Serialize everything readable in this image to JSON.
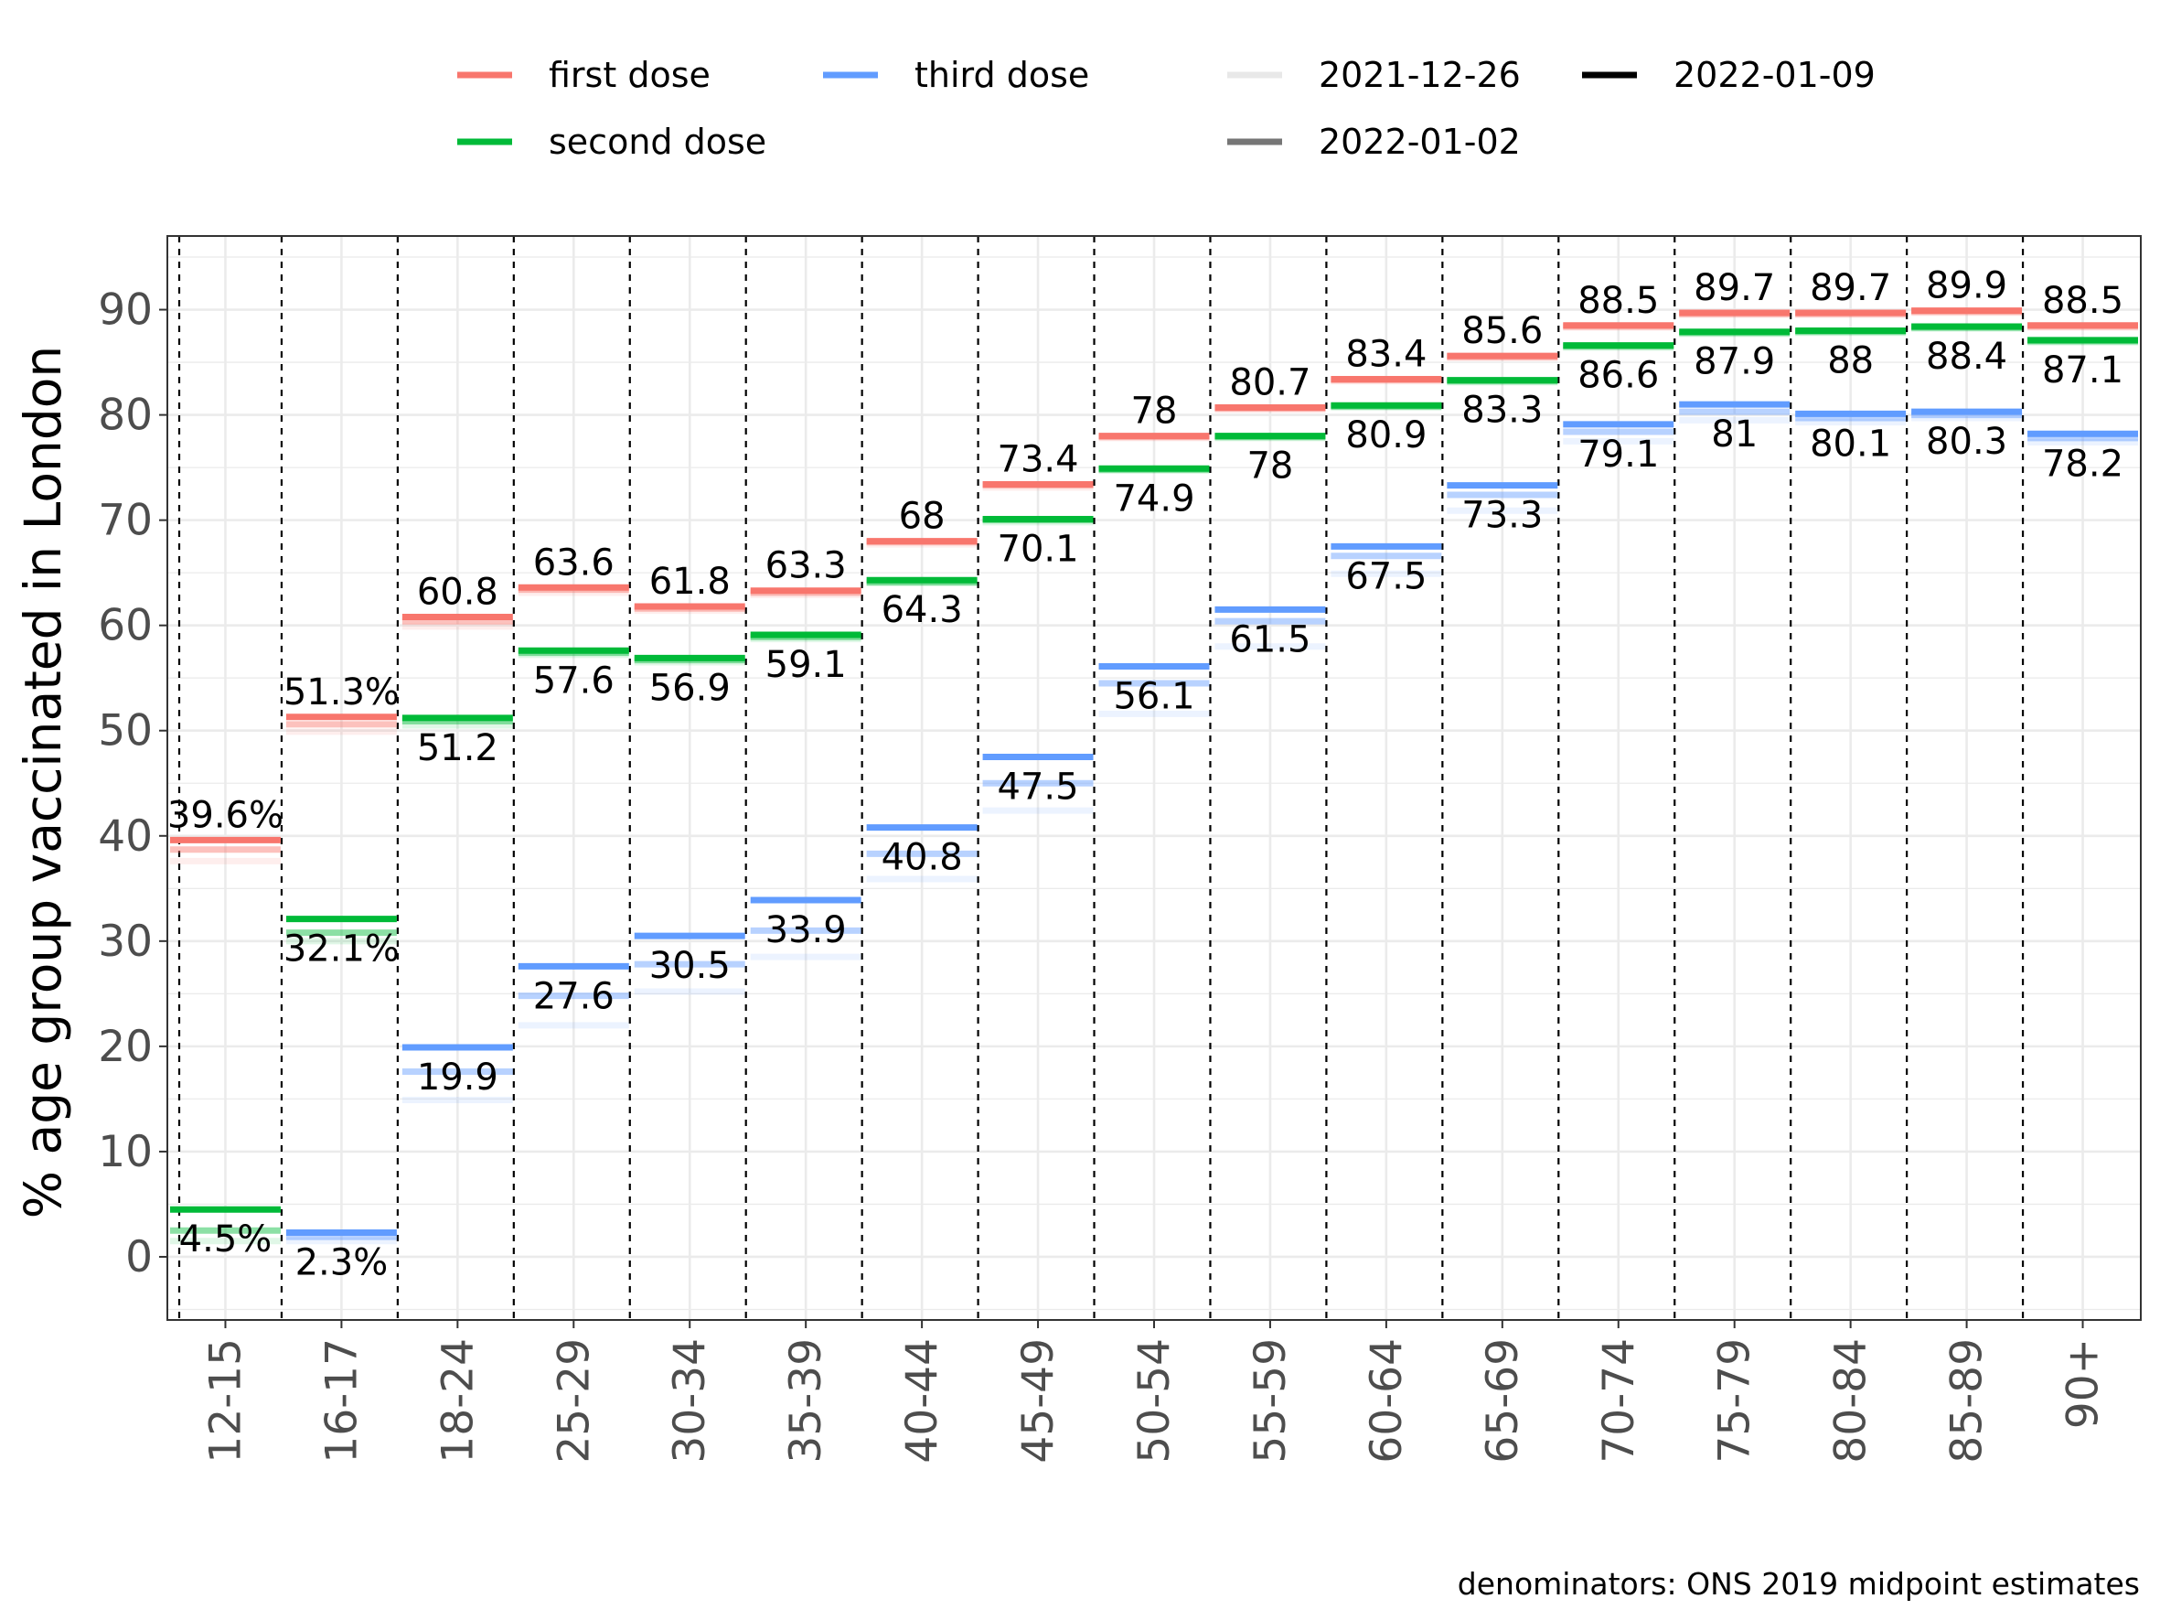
{
  "chart_data": {
    "type": "line",
    "ylabel": "% age group vaccinated in London",
    "xlabel": "",
    "caption": "denominators: ONS 2019 midpoint estimates",
    "ylim": [
      -6,
      97
    ],
    "yticks": [
      0,
      10,
      20,
      30,
      40,
      50,
      60,
      70,
      80,
      90
    ],
    "grid": true,
    "legend_position": "top",
    "categories": [
      "12-15",
      "16-17",
      "18-24",
      "25-29",
      "30-34",
      "35-39",
      "40-44",
      "45-49",
      "50-54",
      "55-59",
      "60-64",
      "65-69",
      "70-74",
      "75-79",
      "80-84",
      "85-89",
      "90+"
    ],
    "legend": {
      "doses": [
        {
          "label": "first dose",
          "color": "#F8766D"
        },
        {
          "label": "second dose",
          "color": "#00BA38"
        },
        {
          "label": "third dose",
          "color": "#619CFF"
        }
      ],
      "dates": [
        {
          "label": "2021-12-26",
          "color": "#e8e8e8"
        },
        {
          "label": "2022-01-02",
          "color": "#767676"
        },
        {
          "label": "2022-01-09",
          "color": "#000000"
        }
      ]
    },
    "series": [
      {
        "name": "first dose",
        "color": "#F8766D",
        "values": [
          39.6,
          51.3,
          60.8,
          63.6,
          61.8,
          63.3,
          68,
          73.4,
          78,
          80.7,
          83.4,
          85.6,
          88.5,
          89.7,
          89.7,
          89.9,
          88.5
        ],
        "labels": [
          "39.6%",
          "51.3%",
          "60.8",
          "63.6",
          "61.8",
          "63.3",
          "68",
          "73.4",
          "78",
          "80.7",
          "83.4",
          "85.6",
          "88.5",
          "89.7",
          "89.7",
          "89.9",
          "88.5"
        ],
        "previous": [
          [
            37.6,
            38.7
          ],
          [
            49.9,
            50.6
          ],
          [
            59.9,
            60.4
          ],
          [
            63.1,
            63.4
          ],
          [
            61.4,
            61.6
          ],
          [
            62.9,
            63.1
          ],
          [
            67.7,
            67.9
          ],
          [
            73.1,
            73.3
          ],
          [
            77.8,
            77.9
          ],
          [
            80.5,
            80.6
          ],
          [
            83.2,
            83.3
          ],
          [
            85.4,
            85.5
          ],
          [
            88.3,
            88.4
          ],
          [
            89.5,
            89.6
          ],
          [
            89.5,
            89.6
          ],
          [
            89.7,
            89.8
          ],
          [
            88.3,
            88.4
          ]
        ]
      },
      {
        "name": "second dose",
        "color": "#00BA38",
        "values": [
          4.5,
          32.1,
          51.2,
          57.6,
          56.9,
          59.1,
          64.3,
          70.1,
          74.9,
          78,
          80.9,
          83.3,
          86.6,
          87.9,
          88,
          88.4,
          87.1
        ],
        "labels": [
          "4.5%",
          "32.1%",
          "51.2",
          "57.6",
          "56.9",
          "59.1",
          "64.3",
          "70.1",
          "74.9",
          "78",
          "80.9",
          "83.3",
          "86.6",
          "87.9",
          "88",
          "88.4",
          "87.1"
        ],
        "previous": [
          [
            1.5,
            2.5
          ],
          [
            30.0,
            30.8
          ],
          [
            50.5,
            50.9
          ],
          [
            57.2,
            57.4
          ],
          [
            56.5,
            56.7
          ],
          [
            58.7,
            58.9
          ],
          [
            64.0,
            64.1
          ],
          [
            69.8,
            70.0
          ],
          [
            74.7,
            74.8
          ],
          [
            77.8,
            77.9
          ],
          [
            80.7,
            80.8
          ],
          [
            83.1,
            83.2
          ],
          [
            86.4,
            86.5
          ],
          [
            87.7,
            87.8
          ],
          [
            87.8,
            87.9
          ],
          [
            88.2,
            88.3
          ],
          [
            86.9,
            87.0
          ]
        ]
      },
      {
        "name": "third dose",
        "color": "#619CFF",
        "values": [
          null,
          2.3,
          19.9,
          27.6,
          30.5,
          33.9,
          40.8,
          47.5,
          56.1,
          61.5,
          67.5,
          73.3,
          79.1,
          81,
          80.1,
          80.3,
          78.2
        ],
        "labels": [
          null,
          "2.3%",
          "19.9",
          "27.6",
          "30.5",
          "33.9",
          "40.8",
          "47.5",
          "56.1",
          "61.5",
          "67.5",
          "73.3",
          "79.1",
          "81",
          "80.1",
          "80.3",
          "78.2"
        ],
        "previous": [
          null,
          [
            1.5,
            1.9
          ],
          [
            14.9,
            17.6
          ],
          [
            22.0,
            24.8
          ],
          [
            25.2,
            27.8
          ],
          [
            28.5,
            31.0
          ],
          [
            35.9,
            38.3
          ],
          [
            42.4,
            45.0
          ],
          [
            51.6,
            54.5
          ],
          [
            58.0,
            60.4
          ],
          [
            64.9,
            66.6
          ],
          [
            70.9,
            72.4
          ],
          [
            77.5,
            78.4
          ],
          [
            79.5,
            80.3
          ],
          [
            79.3,
            79.7
          ],
          [
            79.7,
            80.0
          ],
          [
            77.4,
            77.8
          ]
        ]
      }
    ]
  }
}
